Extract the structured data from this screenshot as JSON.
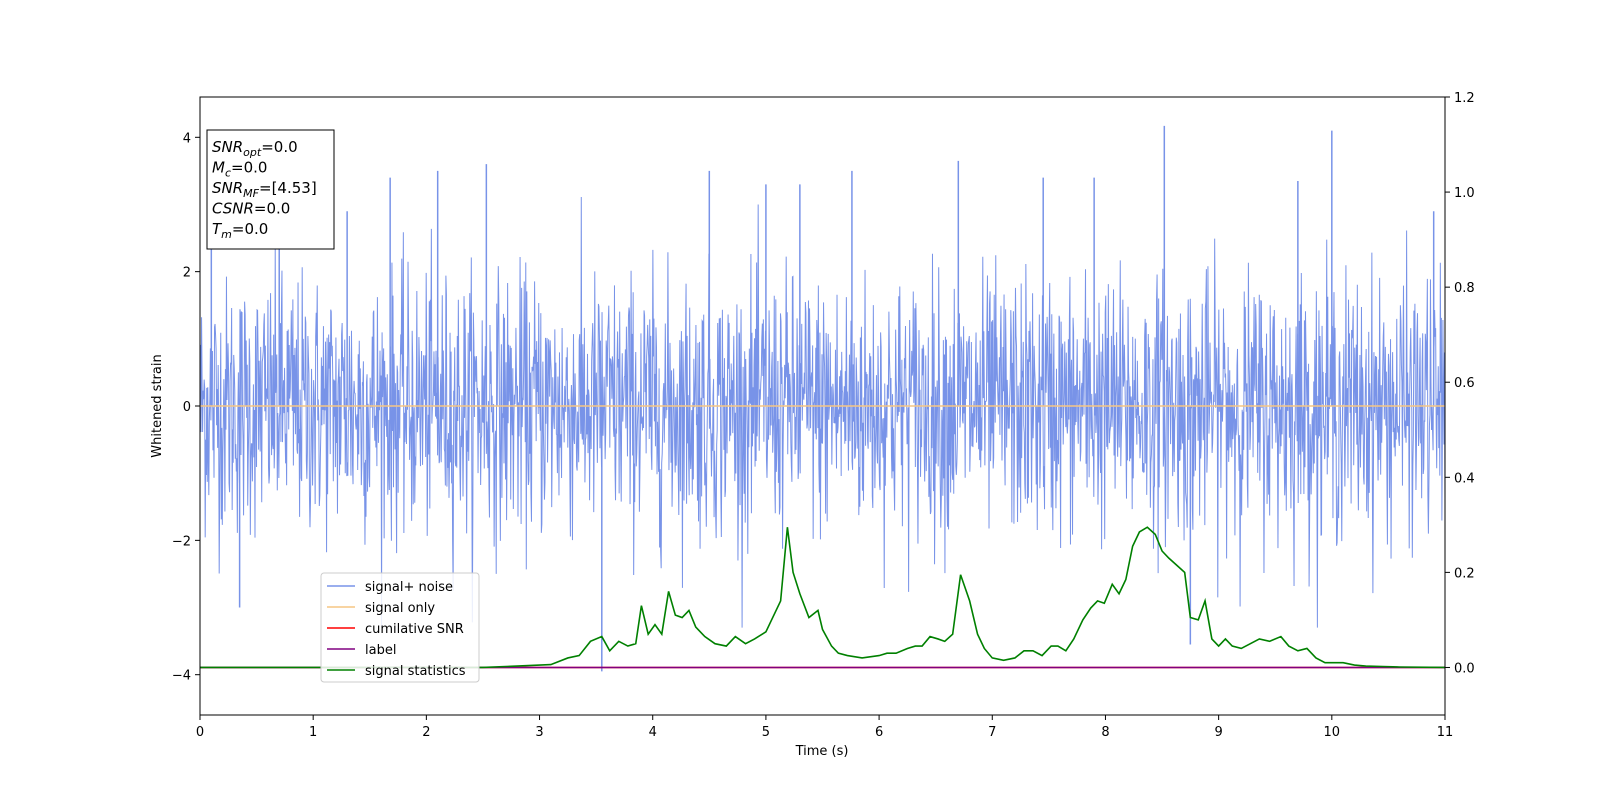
{
  "chart_data": {
    "type": "line",
    "xlabel": "Time (s)",
    "ylabel": "Whitened strain",
    "xlim": [
      0,
      11
    ],
    "ylim": [
      -4.6,
      4.6
    ],
    "y2lim": [
      -0.1,
      1.2
    ],
    "x_ticks": [
      0,
      1,
      2,
      3,
      4,
      5,
      6,
      7,
      8,
      9,
      10,
      11
    ],
    "x_tick_labels": [
      "0",
      "1",
      "2",
      "3",
      "4",
      "5",
      "6",
      "7",
      "8",
      "9",
      "10",
      "11"
    ],
    "y_ticks": [
      -4,
      -2,
      0,
      2,
      4
    ],
    "y_tick_labels": [
      "−4",
      "−2",
      "0",
      "2",
      "4"
    ],
    "y2_ticks": [
      0.0,
      0.2,
      0.4,
      0.6,
      0.8,
      1.0,
      1.2
    ],
    "y2_tick_labels": [
      "0.0",
      "0.2",
      "0.4",
      "0.6",
      "0.8",
      "1.0",
      "1.2"
    ],
    "legend_position": "lower-left",
    "info_box": {
      "lines": [
        {
          "base": "SNR",
          "sub": "opt",
          "rest": "=0.0"
        },
        {
          "base": "M",
          "sub": "c",
          "rest": "=0.0"
        },
        {
          "base": "SNR",
          "sub": "MF",
          "rest": "=[4.53]"
        },
        {
          "base": "CSNR",
          "sub": "",
          "rest": "=0.0"
        },
        {
          "base": "T",
          "sub": "m",
          "rest": "=0.0"
        }
      ]
    },
    "series": [
      {
        "name": "signal+ noise",
        "axis": "left",
        "color": "#7893e8",
        "description_of_values": "noise band, approx. amplitude ±1.8 with spikes up to ~4.2",
        "noise_std": 0.95,
        "spikes": [
          {
            "x": 0.1,
            "y": 2.4
          },
          {
            "x": 0.35,
            "y": -3.0
          },
          {
            "x": 0.7,
            "y": 2.9
          },
          {
            "x": 1.3,
            "y": 2.9
          },
          {
            "x": 1.68,
            "y": 3.4
          },
          {
            "x": 2.1,
            "y": 3.5
          },
          {
            "x": 2.53,
            "y": 3.6
          },
          {
            "x": 3.55,
            "y": -3.95
          },
          {
            "x": 4.5,
            "y": 3.5
          },
          {
            "x": 5.0,
            "y": 3.3
          },
          {
            "x": 5.3,
            "y": 3.3
          },
          {
            "x": 5.76,
            "y": 3.5
          },
          {
            "x": 6.7,
            "y": 3.65
          },
          {
            "x": 7.45,
            "y": 3.4
          },
          {
            "x": 7.9,
            "y": 3.4
          },
          {
            "x": 8.52,
            "y": 4.17
          },
          {
            "x": 8.75,
            "y": -3.55
          },
          {
            "x": 10.0,
            "y": 4.1
          },
          {
            "x": 9.7,
            "y": 3.35
          },
          {
            "x": 10.9,
            "y": 2.9
          }
        ]
      },
      {
        "name": "signal only",
        "axis": "left",
        "color": "#f5c684",
        "x": [
          0,
          11
        ],
        "y": [
          0,
          0
        ]
      },
      {
        "name": "cumilative SNR",
        "axis": "right",
        "color": "#ff0000",
        "x": [
          0,
          11
        ],
        "y": [
          0,
          0
        ]
      },
      {
        "name": "label",
        "axis": "right",
        "color": "#800080",
        "x": [
          0,
          11
        ],
        "y": [
          0,
          0
        ]
      },
      {
        "name": "signal statistics",
        "axis": "right",
        "color": "#008000",
        "x": [
          0,
          0.5,
          1.0,
          1.5,
          2.0,
          2.5,
          2.9,
          3.1,
          3.25,
          3.35,
          3.45,
          3.55,
          3.62,
          3.7,
          3.78,
          3.85,
          3.9,
          3.96,
          4.02,
          4.08,
          4.14,
          4.2,
          4.26,
          4.32,
          4.38,
          4.46,
          4.55,
          4.65,
          4.73,
          4.82,
          4.9,
          5.0,
          5.07,
          5.13,
          5.19,
          5.24,
          5.3,
          5.38,
          5.46,
          5.5,
          5.58,
          5.64,
          5.72,
          5.85,
          6.0,
          6.07,
          6.15,
          6.25,
          6.32,
          6.38,
          6.45,
          6.52,
          6.58,
          6.65,
          6.72,
          6.8,
          6.87,
          6.93,
          7.0,
          7.1,
          7.2,
          7.28,
          7.36,
          7.44,
          7.52,
          7.58,
          7.65,
          7.72,
          7.8,
          7.87,
          7.93,
          7.99,
          8.06,
          8.12,
          8.18,
          8.24,
          8.3,
          8.37,
          8.44,
          8.5,
          8.56,
          8.63,
          8.7,
          8.75,
          8.82,
          8.88,
          8.94,
          9.0,
          9.06,
          9.12,
          9.2,
          9.28,
          9.36,
          9.45,
          9.55,
          9.62,
          9.7,
          9.78,
          9.86,
          9.94,
          10.02,
          10.1,
          10.2,
          10.3,
          10.45,
          10.6,
          11.0
        ],
        "y": [
          0.0,
          0.0,
          0.0,
          0.0,
          0.0,
          0.0,
          0.004,
          0.006,
          0.02,
          0.025,
          0.055,
          0.065,
          0.035,
          0.055,
          0.045,
          0.05,
          0.13,
          0.07,
          0.09,
          0.07,
          0.16,
          0.11,
          0.105,
          0.12,
          0.085,
          0.065,
          0.05,
          0.045,
          0.065,
          0.05,
          0.06,
          0.075,
          0.11,
          0.14,
          0.295,
          0.2,
          0.155,
          0.105,
          0.12,
          0.08,
          0.045,
          0.03,
          0.025,
          0.02,
          0.025,
          0.03,
          0.03,
          0.04,
          0.045,
          0.045,
          0.065,
          0.06,
          0.055,
          0.07,
          0.195,
          0.14,
          0.07,
          0.04,
          0.02,
          0.015,
          0.02,
          0.035,
          0.035,
          0.025,
          0.045,
          0.045,
          0.035,
          0.06,
          0.1,
          0.125,
          0.14,
          0.135,
          0.175,
          0.155,
          0.185,
          0.255,
          0.285,
          0.295,
          0.28,
          0.245,
          0.23,
          0.215,
          0.2,
          0.105,
          0.1,
          0.14,
          0.06,
          0.045,
          0.06,
          0.045,
          0.04,
          0.05,
          0.06,
          0.055,
          0.065,
          0.045,
          0.035,
          0.04,
          0.02,
          0.01,
          0.01,
          0.01,
          0.005,
          0.003,
          0.002,
          0.001,
          0.0
        ]
      }
    ]
  }
}
